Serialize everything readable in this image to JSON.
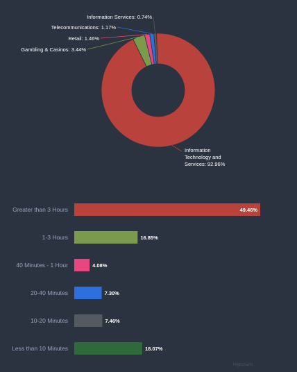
{
  "chart_data": [
    {
      "type": "pie",
      "style": "donut",
      "slices": [
        {
          "label": "Information Technology and Services",
          "display": "Information Technology and Services: 92.96%",
          "value": 92.96,
          "color": "#b9433c"
        },
        {
          "label": "Gambling & Casinos",
          "display": "Gambling & Casinos: 3.44%",
          "value": 3.44,
          "color": "#7b9a4c"
        },
        {
          "label": "Retail",
          "display": "Retail: 1.46%",
          "value": 1.46,
          "color": "#e8467e"
        },
        {
          "label": "Telecommunications",
          "display": "Telecommunications: 1.17%",
          "value": 1.17,
          "color": "#2e6fe0"
        },
        {
          "label": "Information Services",
          "display": "Information Services: 0.74%",
          "value": 0.74,
          "color": "#555a60"
        }
      ]
    },
    {
      "type": "bar",
      "orientation": "horizontal",
      "categories": [
        "Greater than 3 Hours",
        "1-3 Hours",
        "40 Minutes - 1 Hour",
        "20-40 Minutes",
        "10-20 Minutes",
        "Less than 10 Minutes"
      ],
      "values": [
        49.46,
        16.85,
        4.08,
        7.3,
        7.46,
        18.07
      ],
      "value_labels": [
        "49.46%",
        "16.85%",
        "4.08%",
        "7.30%",
        "7.46%",
        "18.07%"
      ],
      "colors": [
        "#b9433c",
        "#7b9a4c",
        "#e8467e",
        "#2e6fe0",
        "#555a60",
        "#2f6b3a"
      ],
      "xlim": [
        0,
        50
      ]
    }
  ],
  "credit": "Highcharts"
}
